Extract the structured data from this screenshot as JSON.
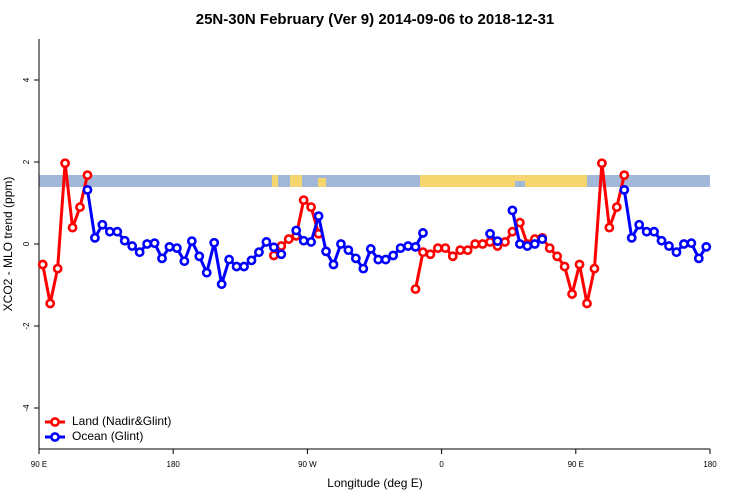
{
  "chart_data": {
    "type": "line",
    "title": "25N-30N February (Ver 9)   2014-09-06 to 2018-12-31",
    "x_label": "Longitude (deg E)",
    "y_label": "XCO2 - MLO trend (ppm)",
    "x": [
      92.5,
      97.5,
      102.5,
      107.5,
      112.5,
      117.5,
      122.5,
      127.5,
      132.5,
      137.5,
      142.5,
      147.5,
      152.5,
      157.5,
      162.5,
      167.5,
      172.5,
      177.5,
      182.5,
      187.5,
      192.5,
      197.5,
      202.5,
      207.5,
      212.5,
      217.5,
      222.5,
      227.5,
      232.5,
      237.5,
      242.5,
      247.5,
      252.5,
      257.5,
      262.5,
      267.5,
      272.5,
      277.5,
      282.5,
      287.5,
      292.5,
      297.5,
      302.5,
      307.5,
      312.5,
      317.5,
      322.5,
      327.5,
      332.5,
      337.5,
      342.5,
      347.5,
      352.5,
      357.5,
      362.5,
      367.5,
      372.5,
      377.5,
      382.5,
      387.5,
      392.5,
      397.5,
      402.5,
      407.5,
      412.5,
      417.5,
      422.5,
      427.5,
      432.5,
      437.5,
      442.5,
      447.5,
      452.5,
      457.5,
      462.5,
      467.5,
      472.5,
      477.5,
      482.5,
      487.5,
      492.5,
      497.5,
      502.5,
      507.5,
      512.5,
      517.5,
      522.5,
      527.5,
      532.5,
      537.5
    ],
    "series": [
      {
        "name": "Land (Nadir&Glint)",
        "color": "#ff0000",
        "values": [
          -0.5,
          -1.45,
          -0.6,
          1.97,
          0.4,
          0.9,
          1.68,
          null,
          null,
          null,
          null,
          null,
          null,
          null,
          null,
          null,
          null,
          null,
          null,
          null,
          null,
          null,
          null,
          null,
          null,
          null,
          null,
          null,
          null,
          null,
          null,
          -0.28,
          -0.05,
          0.12,
          0.2,
          1.07,
          0.9,
          0.25,
          null,
          null,
          null,
          null,
          null,
          null,
          null,
          null,
          null,
          null,
          null,
          null,
          -1.1,
          -0.2,
          -0.25,
          -0.1,
          -0.1,
          -0.3,
          -0.15,
          -0.15,
          0,
          0,
          0.05,
          -0.05,
          0.05,
          0.3,
          0.52,
          0,
          0.12,
          0.15,
          -0.1,
          -0.3,
          -0.55,
          -1.22,
          -0.5,
          -1.45,
          -0.6,
          1.97,
          0.4,
          0.9,
          1.68,
          null,
          null,
          null,
          null,
          null,
          null,
          null,
          null,
          null,
          null,
          null
        ]
      },
      {
        "name": "Ocean (Glint)",
        "color": "#0000ff",
        "values": [
          null,
          null,
          null,
          null,
          null,
          null,
          1.32,
          0.15,
          0.47,
          0.3,
          0.3,
          0.08,
          -0.05,
          -0.2,
          0,
          0.02,
          -0.35,
          -0.07,
          -0.1,
          -0.42,
          0.07,
          -0.3,
          -0.7,
          0.03,
          -0.98,
          -0.38,
          -0.55,
          -0.55,
          -0.4,
          -0.2,
          0.05,
          -0.08,
          -0.25,
          null,
          0.33,
          0.08,
          0.05,
          0.68,
          -0.18,
          -0.5,
          0,
          -0.15,
          -0.35,
          -0.6,
          -0.12,
          -0.38,
          -0.38,
          -0.28,
          -0.1,
          -0.05,
          -0.07,
          0.27,
          null,
          null,
          null,
          null,
          null,
          null,
          null,
          null,
          0.25,
          0.07,
          null,
          0.82,
          0,
          -0.05,
          0,
          0.12,
          null,
          null,
          null,
          null,
          null,
          null,
          null,
          null,
          null,
          null,
          1.32,
          0.15,
          0.47,
          0.3,
          0.3,
          0.08,
          -0.05,
          -0.2,
          0,
          0.02,
          -0.35,
          -0.07
        ]
      }
    ],
    "xlim": [
      90,
      540
    ],
    "xticks": [
      {
        "value": 90,
        "label": "90 E"
      },
      180,
      {
        "value": 270,
        "label": "90 W"
      },
      {
        "value": 360,
        "label": "0"
      },
      {
        "value": 450,
        "label": "90 E"
      },
      {
        "value": 540,
        "label": "180"
      }
    ],
    "ylim": [
      -5,
      5
    ],
    "yticks": [
      -4,
      -2,
      0,
      2,
      4
    ],
    "legend": "bottom-left"
  }
}
